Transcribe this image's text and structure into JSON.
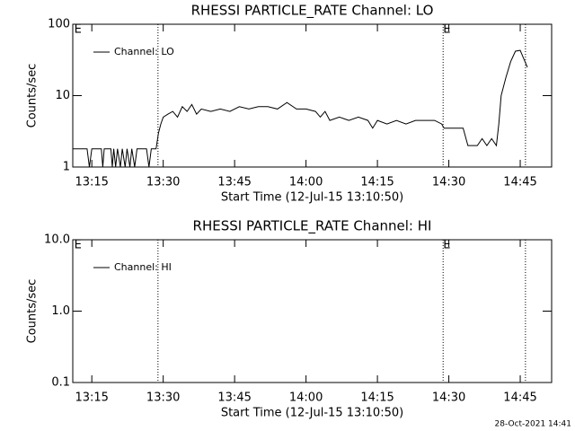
{
  "chart_data": [
    {
      "type": "line",
      "title": "RHESSI PARTICLE_RATE Channel: LO",
      "x_label": "Start Time (12-Jul-15 13:10:50)",
      "y_label": "Counts/sec",
      "xlim": [
        791,
        891.6
      ],
      "xticks": [
        {
          "value": 795,
          "label": "13:15"
        },
        {
          "value": 810,
          "label": "13:30"
        },
        {
          "value": 825,
          "label": "13:45"
        },
        {
          "value": 840,
          "label": "14:00"
        },
        {
          "value": 855,
          "label": "14:15"
        },
        {
          "value": 870,
          "label": "14:30"
        },
        {
          "value": 885,
          "label": "14:45"
        }
      ],
      "ylim": [
        1,
        100
      ],
      "yticks": [
        1,
        10,
        100
      ],
      "log_y": true,
      "vlines": [
        808.9,
        868.8,
        886.1
      ],
      "annotations": [
        {
          "x": 791.3,
          "label": "E"
        },
        {
          "x": 868.8,
          "label": "E"
        }
      ],
      "series": [
        {
          "name": "Channel: LO",
          "color": "#000000",
          "x": [
            791,
            794,
            794.5,
            795,
            797,
            797.3,
            797.6,
            799,
            799.3,
            799.6,
            800,
            800.4,
            801,
            801.4,
            802,
            802.4,
            803,
            803.4,
            804,
            804.5,
            806.5,
            807,
            807.5,
            808.5,
            809,
            809.5,
            810,
            811,
            812,
            813,
            814,
            815,
            816,
            817,
            818,
            820,
            822,
            824,
            826,
            828,
            830,
            832,
            834,
            836,
            838,
            840,
            842,
            843,
            844,
            845,
            847,
            849,
            851,
            853,
            854,
            855,
            857,
            859,
            861,
            863,
            865,
            867,
            868.5,
            869,
            870,
            873,
            874,
            876,
            877,
            878,
            879,
            880,
            880.5,
            881,
            882,
            883,
            884,
            885,
            886,
            886.5
          ],
          "values": [
            1.8,
            1.8,
            1,
            1.8,
            1.8,
            1,
            1.8,
            1.8,
            1,
            1.8,
            1,
            1.8,
            1,
            1.8,
            1,
            1.8,
            1,
            1.8,
            1,
            1.8,
            1.8,
            1,
            1.8,
            1.8,
            3,
            4,
            5,
            5.5,
            6,
            5,
            7,
            6,
            7.5,
            5.5,
            6.5,
            6,
            6.5,
            6,
            7,
            6.5,
            7,
            7,
            6.5,
            8,
            6.5,
            6.5,
            6,
            5,
            6,
            4.5,
            5,
            4.5,
            5,
            4.5,
            3.5,
            4.5,
            4,
            4.5,
            4,
            4.5,
            4.5,
            4.5,
            4,
            3.5,
            3.5,
            3.5,
            2,
            2,
            2.5,
            2,
            2.5,
            2,
            4,
            10,
            18,
            30,
            42,
            43,
            30,
            25
          ]
        }
      ]
    },
    {
      "type": "line",
      "title": "RHESSI PARTICLE_RATE Channel: HI",
      "x_label": "Start Time (12-Jul-15 13:10:50)",
      "y_label": "Counts/sec",
      "xlim": [
        791,
        891.6
      ],
      "xticks": [
        {
          "value": 795,
          "label": "13:15"
        },
        {
          "value": 810,
          "label": "13:30"
        },
        {
          "value": 825,
          "label": "13:45"
        },
        {
          "value": 840,
          "label": "14:00"
        },
        {
          "value": 855,
          "label": "14:15"
        },
        {
          "value": 870,
          "label": "14:30"
        },
        {
          "value": 885,
          "label": "14:45"
        }
      ],
      "ylim": [
        0.1,
        10
      ],
      "yticks": [
        0.1,
        {
          "value": 1,
          "label": "1.0"
        },
        {
          "value": 10,
          "label": "10.0"
        }
      ],
      "log_y": true,
      "vlines": [
        808.9,
        868.8,
        886.1
      ],
      "annotations": [
        {
          "x": 791.3,
          "label": "E"
        },
        {
          "x": 868.8,
          "label": "E"
        }
      ],
      "series": [
        {
          "name": "Channel: HI",
          "color": "#000000",
          "x": [],
          "values": []
        }
      ]
    }
  ],
  "footer": "28-Oct-2021 14:41"
}
